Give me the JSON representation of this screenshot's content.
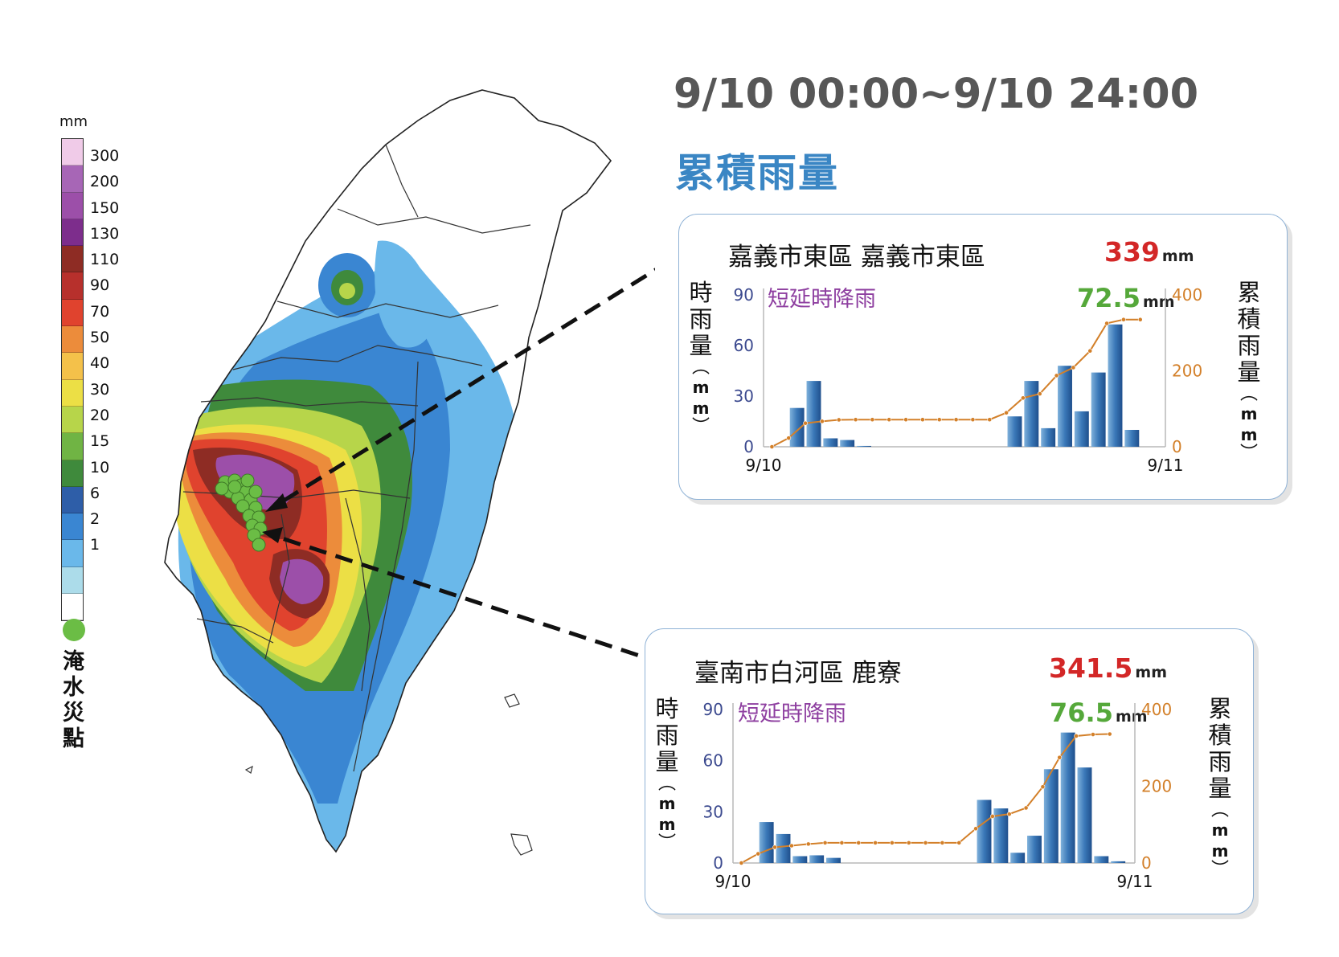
{
  "header": {
    "time_range": "9/10 00:00~9/10 24:00",
    "title": "累積雨量"
  },
  "legend": {
    "unit": "mm",
    "levels": [
      "300",
      "200",
      "150",
      "130",
      "110",
      "90",
      "70",
      "50",
      "40",
      "30",
      "20",
      "15",
      "10",
      "6",
      "2",
      "1",
      ""
    ],
    "colors": [
      "#f0cbe8",
      "#a766b6",
      "#9c4fa9",
      "#7d2d8c",
      "#8e2c24",
      "#b7302c",
      "#e0432e",
      "#ec8c3b",
      "#f4c14a",
      "#ecdf45",
      "#b7d54a",
      "#70b444",
      "#3f8a3c",
      "#2e5ea8",
      "#3a86d2",
      "#6ab8ea",
      "#acdcea",
      "#ffffff"
    ],
    "flood_label": "淹水災點",
    "flood_color": "#6bbd45"
  },
  "map": {
    "land_color": "#ffffff",
    "border_color": "#333333"
  },
  "chart_data": [
    {
      "type": "bar",
      "station": "嘉義市東區 嘉義市東區",
      "total_value": "339",
      "total_unit": "mm",
      "short_rain_label": "短延時降雨",
      "peak_value": "72.5",
      "peak_unit": "mm",
      "left_axis_label": "時雨量",
      "right_axis_label": "累積雨量",
      "axis_unit": "mm",
      "x_start": "9/10",
      "x_end": "9/11",
      "left_ticks": [
        "0",
        "30",
        "60",
        "90"
      ],
      "right_ticks": [
        "0",
        "200",
        "400"
      ],
      "ylim_left": [
        0,
        90
      ],
      "ylim_right": [
        0,
        400
      ],
      "hours": [
        1,
        2,
        3,
        4,
        5,
        6,
        7,
        8,
        9,
        10,
        11,
        12,
        13,
        14,
        15,
        16,
        17,
        18,
        19,
        20,
        21,
        22,
        23
      ],
      "hourly_rain": [
        0,
        23,
        39,
        5,
        4,
        0.5,
        0,
        0,
        0,
        0,
        0,
        0,
        0,
        0,
        18,
        39,
        11,
        48,
        21,
        44,
        72.5,
        10,
        0
      ],
      "cumulative": [
        0,
        23,
        62,
        67,
        71,
        71.5,
        71.5,
        71.5,
        71.5,
        71.5,
        71.5,
        71.5,
        71.5,
        71.5,
        89.5,
        128.5,
        139.5,
        187.5,
        208.5,
        252.5,
        325,
        335,
        335
      ]
    },
    {
      "type": "bar",
      "station": "臺南市白河區 鹿寮",
      "total_value": "341.5",
      "total_unit": "mm",
      "short_rain_label": "短延時降雨",
      "peak_value": "76.5",
      "peak_unit": "mm",
      "left_axis_label": "時雨量",
      "right_axis_label": "累積雨量",
      "axis_unit": "mm",
      "x_start": "9/10",
      "x_end": "9/11",
      "left_ticks": [
        "0",
        "30",
        "60",
        "90"
      ],
      "right_ticks": [
        "0",
        "200",
        "400"
      ],
      "ylim_left": [
        0,
        90
      ],
      "ylim_right": [
        0,
        400
      ],
      "hours": [
        1,
        2,
        3,
        4,
        5,
        6,
        7,
        8,
        9,
        10,
        11,
        12,
        13,
        14,
        15,
        16,
        17,
        18,
        19,
        20,
        21,
        22,
        23
      ],
      "hourly_rain": [
        0,
        24,
        17,
        4,
        4.5,
        3,
        0,
        0,
        0,
        0,
        0,
        0,
        0,
        0,
        37,
        32,
        6,
        16,
        55,
        76.5,
        56,
        4,
        1
      ],
      "cumulative": [
        0,
        24,
        41,
        45,
        49.5,
        52.5,
        52.5,
        52.5,
        52.5,
        52.5,
        52.5,
        52.5,
        52.5,
        52.5,
        89.5,
        121.5,
        127.5,
        143.5,
        198.5,
        275,
        331,
        335,
        336
      ]
    }
  ]
}
